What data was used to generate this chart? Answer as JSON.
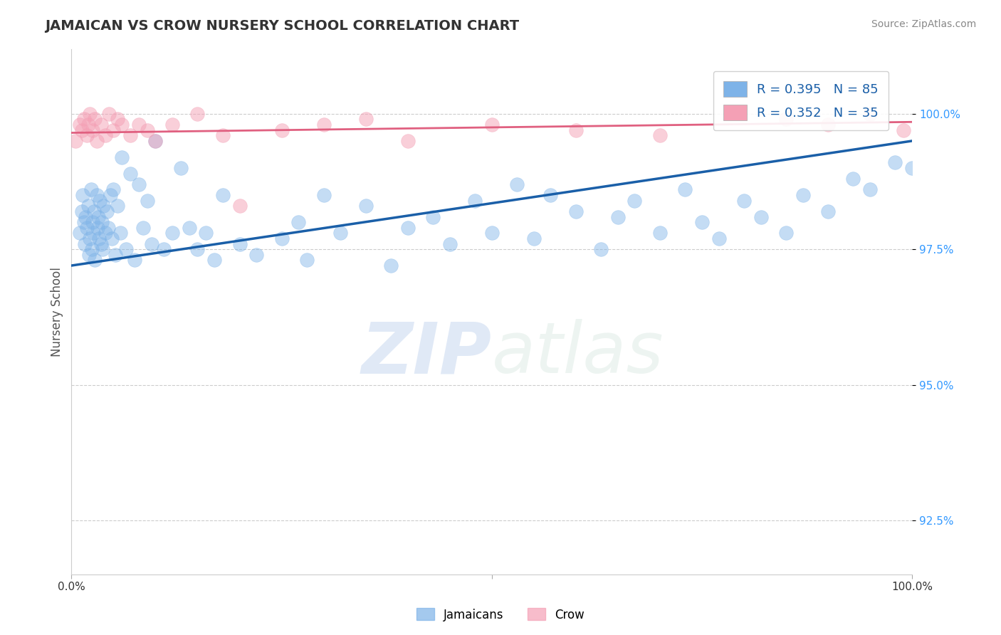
{
  "title": "JAMAICAN VS CROW NURSERY SCHOOL CORRELATION CHART",
  "source": "Source: ZipAtlas.com",
  "ylabel": "Nursery School",
  "ytick_values": [
    100.0,
    97.5,
    95.0,
    92.5
  ],
  "xmin": 0.0,
  "xmax": 100.0,
  "ymin": 91.5,
  "ymax": 101.2,
  "legend_blue_text": "R = 0.395   N = 85",
  "legend_pink_text": "R = 0.352   N = 35",
  "blue_color": "#7EB3E8",
  "pink_color": "#F4A0B5",
  "trendline_blue": "#1A5FA8",
  "trendline_pink": "#E06080",
  "background_color": "#ffffff",
  "watermark_zip": "ZIP",
  "watermark_atlas": "atlas",
  "jamaican_x": [
    1.0,
    1.2,
    1.3,
    1.5,
    1.6,
    1.7,
    1.8,
    2.0,
    2.1,
    2.2,
    2.3,
    2.4,
    2.5,
    2.6,
    2.7,
    2.8,
    3.0,
    3.1,
    3.2,
    3.3,
    3.4,
    3.5,
    3.6,
    3.7,
    3.8,
    4.0,
    4.2,
    4.4,
    4.6,
    4.8,
    5.0,
    5.2,
    5.5,
    5.8,
    6.0,
    6.5,
    7.0,
    7.5,
    8.0,
    8.5,
    9.0,
    9.5,
    10.0,
    11.0,
    12.0,
    13.0,
    14.0,
    15.0,
    16.0,
    17.0,
    18.0,
    20.0,
    22.0,
    25.0,
    27.0,
    28.0,
    30.0,
    32.0,
    35.0,
    38.0,
    40.0,
    43.0,
    45.0,
    48.0,
    50.0,
    53.0,
    55.0,
    57.0,
    60.0,
    63.0,
    65.0,
    67.0,
    70.0,
    73.0,
    75.0,
    77.0,
    80.0,
    82.0,
    85.0,
    87.0,
    90.0,
    93.0,
    95.0,
    98.0,
    100.0
  ],
  "jamaican_y": [
    97.8,
    98.2,
    98.5,
    98.0,
    97.6,
    98.1,
    97.9,
    98.3,
    97.4,
    97.7,
    98.6,
    97.5,
    98.0,
    97.8,
    98.2,
    97.3,
    98.5,
    97.9,
    98.1,
    97.7,
    98.4,
    97.6,
    98.0,
    97.5,
    98.3,
    97.8,
    98.2,
    97.9,
    98.5,
    97.7,
    98.6,
    97.4,
    98.3,
    97.8,
    99.2,
    97.5,
    98.9,
    97.3,
    98.7,
    97.9,
    98.4,
    97.6,
    99.5,
    97.5,
    97.8,
    99.0,
    97.9,
    97.5,
    97.8,
    97.3,
    98.5,
    97.6,
    97.4,
    97.7,
    98.0,
    97.3,
    98.5,
    97.8,
    98.3,
    97.2,
    97.9,
    98.1,
    97.6,
    98.4,
    97.8,
    98.7,
    97.7,
    98.5,
    98.2,
    97.5,
    98.1,
    98.4,
    97.8,
    98.6,
    98.0,
    97.7,
    98.4,
    98.1,
    97.8,
    98.5,
    98.2,
    98.8,
    98.6,
    99.1,
    99.0
  ],
  "crow_x": [
    0.5,
    1.0,
    1.2,
    1.5,
    1.8,
    2.0,
    2.2,
    2.5,
    2.8,
    3.0,
    3.5,
    4.0,
    4.5,
    5.0,
    5.5,
    6.0,
    7.0,
    8.0,
    9.0,
    10.0,
    12.0,
    15.0,
    18.0,
    20.0,
    25.0,
    30.0,
    35.0,
    40.0,
    50.0,
    60.0,
    70.0,
    85.0,
    90.0,
    95.0,
    99.0
  ],
  "crow_y": [
    99.5,
    99.8,
    99.7,
    99.9,
    99.6,
    99.8,
    100.0,
    99.7,
    99.9,
    99.5,
    99.8,
    99.6,
    100.0,
    99.7,
    99.9,
    99.8,
    99.6,
    99.8,
    99.7,
    99.5,
    99.8,
    100.0,
    99.6,
    98.3,
    99.7,
    99.8,
    99.9,
    99.5,
    99.8,
    99.7,
    99.6,
    99.9,
    99.8,
    100.0,
    99.7
  ],
  "trendline_blue_start_y": 97.2,
  "trendline_blue_end_y": 99.5,
  "trendline_pink_start_y": 99.65,
  "trendline_pink_end_y": 99.85
}
